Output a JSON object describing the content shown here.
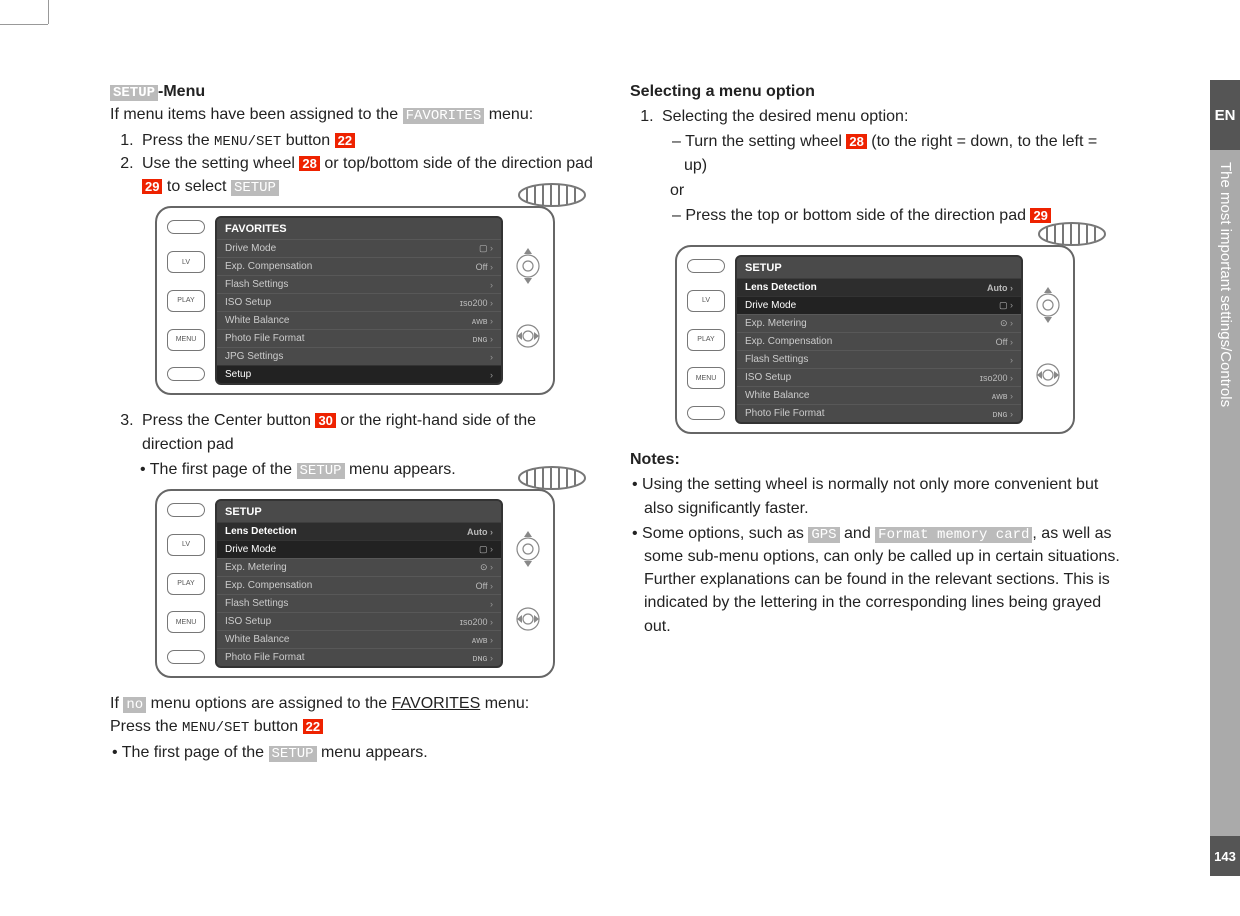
{
  "tabs": {
    "lang": "EN",
    "section": "The most important settings/Controls",
    "page": "143"
  },
  "left": {
    "heading_pre": "SETUP",
    "heading_post": "-Menu",
    "intro_pre": "If menu items have been assigned to the ",
    "intro_tag": "FAVORITES",
    "intro_post": " menu:",
    "step1_pre": "Press the ",
    "step1_btn": "MENU/SET",
    "step1_mid": " button ",
    "step1_ref": "22",
    "step2_pre": "Use the setting wheel ",
    "step2_ref1": "28",
    "step2_mid": " or top/bottom side of the direction pad ",
    "step2_ref2": "29",
    "step2_post": " to select ",
    "step2_tag": "SETUP",
    "step3_pre": "Press the Center button ",
    "step3_ref": "30",
    "step3_post": " or the right-hand side of the direction pad",
    "step3_b_pre": "The first page of the ",
    "step3_b_tag": "SETUP",
    "step3_b_post": " menu appears.",
    "bot1_pre": "If ",
    "bot1_tag": "no",
    "bot1_post": " menu options are assigned to the ",
    "bot1_fav": "FAVORITES",
    "bot1_end": " menu:",
    "bot2_pre": "Press the ",
    "bot2_btn": "MENU/SET",
    "bot2_mid": " button ",
    "bot2_ref": "22",
    "bot2_b_pre": "The first page of the ",
    "bot2_b_tag": "SETUP",
    "bot2_b_post": " menu appears."
  },
  "right": {
    "heading": "Selecting a menu option",
    "step1": "Selecting the desired menu option:",
    "d1_pre": "Turn the setting wheel ",
    "d1_ref": "28",
    "d1_post": " (to the right = down, to the left = up)",
    "or": "or",
    "d2_pre": "Press the top or bottom side of the direction pad ",
    "d2_ref": "29",
    "notes_label": "Notes:",
    "n1": "Using the setting wheel is normally not only more convenient but also significantly faster.",
    "n2_pre": "Some options, such as ",
    "n2_tag1": "GPS",
    "n2_mid": " and ",
    "n2_tag2": "Format memory card",
    "n2_post": ", as well as some sub-menu options, can only be called up in certain situations. Further explanations can be found in the relevant sections. This is indicated by the lettering in the corresponding lines being grayed out."
  },
  "buttons": {
    "lv": "LV",
    "play": "PLAY",
    "menu": "MENU"
  },
  "screen_fav": {
    "title": "FAVORITES",
    "rows": [
      {
        "label": "Drive Mode",
        "val": "▢"
      },
      {
        "label": "Exp. Compensation",
        "val": "Off"
      },
      {
        "label": "Flash Settings",
        "val": ""
      },
      {
        "label": "ISO Setup",
        "val": "ɪsᴏ200"
      },
      {
        "label": "White Balance",
        "val": "ᴀᴡʙ"
      },
      {
        "label": "Photo File Format",
        "val": "ᴅɴɢ"
      },
      {
        "label": "JPG Settings",
        "val": ""
      }
    ],
    "last": "Setup"
  },
  "screen_setup": {
    "title": "SETUP",
    "rows": [
      {
        "label": "Lens Detection",
        "val": "Auto",
        "hi": true
      },
      {
        "label": "Drive Mode",
        "val": "▢",
        "sel": true
      },
      {
        "label": "Exp. Metering",
        "val": "⊙"
      },
      {
        "label": "Exp. Compensation",
        "val": "Off"
      },
      {
        "label": "Flash Settings",
        "val": ""
      },
      {
        "label": "ISO Setup",
        "val": "ɪsᴏ200"
      },
      {
        "label": "White Balance",
        "val": "ᴀᴡʙ"
      },
      {
        "label": "Photo File Format",
        "val": "ᴅɴɢ"
      }
    ]
  },
  "wheel_glyph": "⌼⌼⌼⌼⌼"
}
